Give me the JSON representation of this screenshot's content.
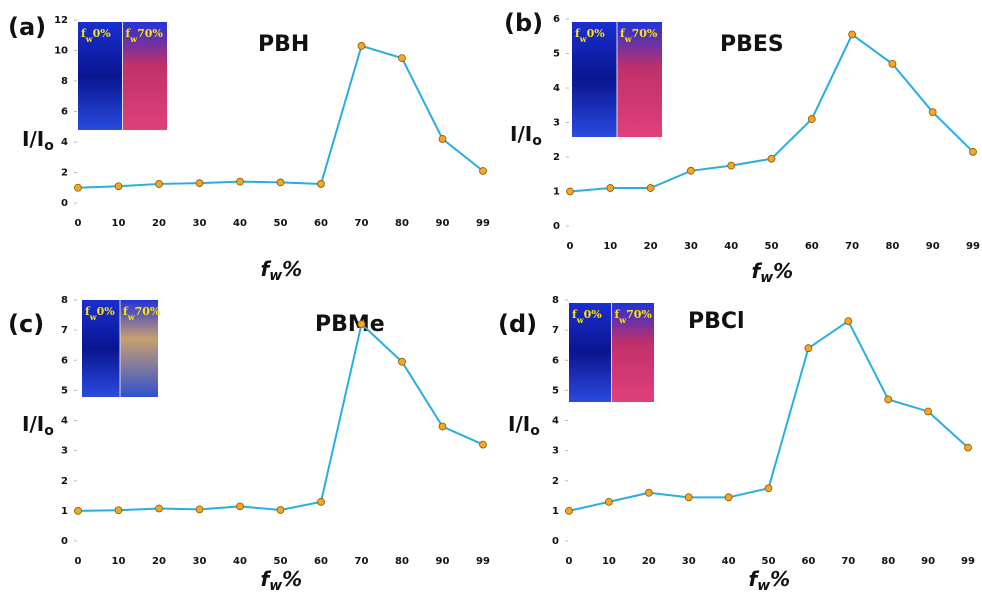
{
  "chart_data": [
    {
      "type": "line",
      "label": "(a)",
      "title": "PBH",
      "ylabel": {
        "main": "I/I",
        "sub": "o"
      },
      "xlabel": {
        "main": "f",
        "sub": "w",
        "tail": "%"
      },
      "insets": [
        {
          "main": "f",
          "sub": "w",
          "tail": "0%"
        },
        {
          "main": "f",
          "sub": "w",
          "tail": "70%"
        }
      ],
      "categories": [
        "0",
        "10",
        "20",
        "30",
        "40",
        "50",
        "60",
        "70",
        "80",
        "90",
        "99"
      ],
      "series": [
        {
          "color": "#29aee0",
          "marker_color": "#f5a623",
          "values": [
            1.0,
            1.1,
            1.25,
            1.3,
            1.4,
            1.35,
            1.25,
            10.3,
            9.5,
            4.2,
            2.1
          ]
        }
      ],
      "ylim": [
        0,
        12
      ],
      "yticks": [
        0,
        2,
        4,
        6,
        8,
        10,
        12
      ]
    },
    {
      "type": "line",
      "label": "(b)",
      "title": "PBES",
      "ylabel": {
        "main": "I/I",
        "sub": "o"
      },
      "xlabel": {
        "main": "f",
        "sub": "w",
        "tail": "%"
      },
      "insets": [
        {
          "main": "f",
          "sub": "w",
          "tail": "0%"
        },
        {
          "main": "f",
          "sub": "w",
          "tail": "70%"
        }
      ],
      "categories": [
        "0",
        "10",
        "20",
        "30",
        "40",
        "50",
        "60",
        "70",
        "80",
        "90",
        "99"
      ],
      "series": [
        {
          "color": "#29aee0",
          "marker_color": "#f5a623",
          "values": [
            1.0,
            1.1,
            1.1,
            1.6,
            1.75,
            1.95,
            3.1,
            5.55,
            4.7,
            3.3,
            2.15
          ]
        }
      ],
      "ylim": [
        0,
        6
      ],
      "yticks": [
        0,
        1,
        2,
        3,
        4,
        5,
        6
      ]
    },
    {
      "type": "line",
      "label": "(c)",
      "title": "PBMe",
      "ylabel": {
        "main": "I/I",
        "sub": "o"
      },
      "xlabel": {
        "main": "f",
        "sub": "w",
        "tail": "%"
      },
      "insets": [
        {
          "main": "f",
          "sub": "w",
          "tail": "0%"
        },
        {
          "main": "f",
          "sub": "w",
          "tail": "70%"
        }
      ],
      "categories": [
        "0",
        "10",
        "20",
        "30",
        "40",
        "50",
        "60",
        "70",
        "80",
        "90",
        "99"
      ],
      "series": [
        {
          "color": "#29aee0",
          "marker_color": "#f5a623",
          "values": [
            1.0,
            1.02,
            1.08,
            1.05,
            1.15,
            1.03,
            1.3,
            7.2,
            5.95,
            3.8,
            3.2
          ]
        }
      ],
      "ylim": [
        0,
        8
      ],
      "yticks": [
        0,
        1,
        2,
        3,
        4,
        5,
        6,
        7,
        8
      ]
    },
    {
      "type": "line",
      "label": "(d)",
      "title": "PBCl",
      "ylabel": {
        "main": "I/I",
        "sub": "o"
      },
      "xlabel": {
        "main": "f",
        "sub": "w",
        "tail": "%"
      },
      "insets": [
        {
          "main": "f",
          "sub": "w",
          "tail": "0%"
        },
        {
          "main": "f",
          "sub": "w",
          "tail": "70%"
        }
      ],
      "categories": [
        "0",
        "10",
        "20",
        "30",
        "40",
        "50",
        "60",
        "70",
        "80",
        "90",
        "99"
      ],
      "series": [
        {
          "color": "#29aee0",
          "marker_color": "#f5a623",
          "values": [
            1.0,
            1.3,
            1.6,
            1.45,
            1.45,
            1.75,
            6.4,
            7.3,
            4.7,
            4.3,
            3.1
          ]
        }
      ],
      "ylim": [
        0,
        8
      ],
      "yticks": [
        0,
        1,
        2,
        3,
        4,
        5,
        6,
        7,
        8
      ]
    }
  ]
}
